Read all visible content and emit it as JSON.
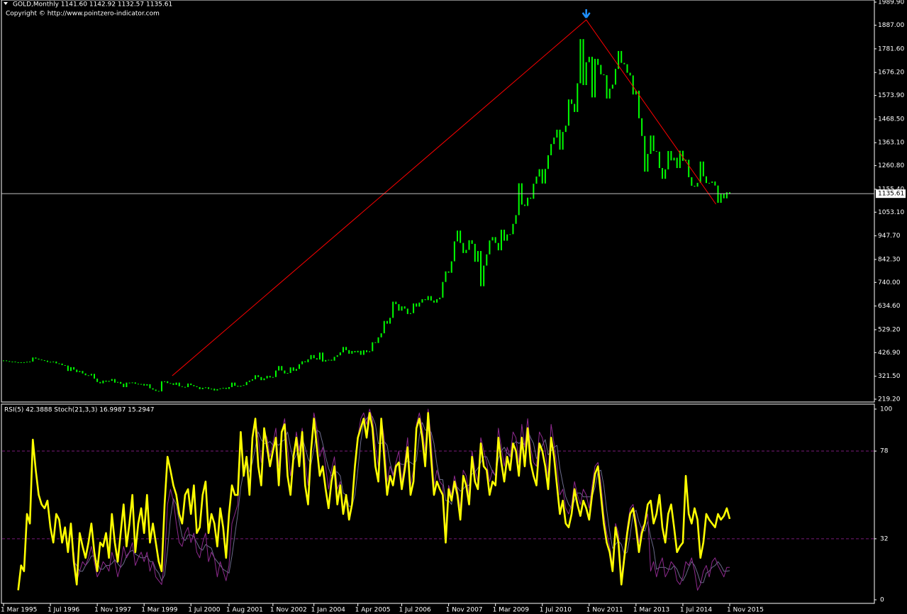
{
  "chart_data": [
    {
      "type": "candlestick",
      "title": "GOLD,Monthly  1141.60 1142.92 1132.57 1135.61",
      "subtitle": "Copyright © http://www.pointzero-indicator.com",
      "color": "#00ff00",
      "values": [
        392,
        389,
        386,
        387,
        384,
        383,
        384,
        383,
        386,
        387,
        405,
        400,
        396,
        393,
        391,
        385,
        386,
        387,
        379,
        378,
        371,
        369,
        345,
        362,
        351,
        340,
        345,
        334,
        326,
        325,
        332,
        311,
        296,
        290,
        302,
        297,
        301,
        309,
        293,
        296,
        288,
        273,
        293,
        292,
        294,
        288,
        287,
        287,
        280,
        286,
        268,
        262,
        256,
        254,
        299,
        299,
        291,
        290,
        283,
        293,
        277,
        274,
        273,
        289,
        282,
        277,
        273,
        264,
        270,
        272,
        265,
        266,
        258,
        264,
        267,
        270,
        265,
        273,
        293,
        279,
        275,
        279,
        282,
        296,
        302,
        308,
        326,
        318,
        304,
        312,
        323,
        316,
        318,
        347,
        367,
        347,
        334,
        336,
        361,
        346,
        354,
        375,
        388,
        384,
        397,
        416,
        402,
        396,
        427,
        387,
        394,
        395,
        391,
        408,
        415,
        428,
        452,
        438,
        422,
        434,
        428,
        435,
        417,
        437,
        429,
        433,
        473,
        470,
        495,
        513,
        568,
        556,
        582,
        654,
        643,
        614,
        633,
        623,
        599,
        603,
        646,
        632,
        650,
        665,
        661,
        679,
        659,
        650,
        665,
        672,
        742,
        789,
        783,
        834,
        923,
        971,
        916,
        871,
        885,
        928,
        912,
        832,
        880,
        723,
        815,
        865,
        927,
        942,
        916,
        883,
        975,
        926,
        954,
        955,
        1001,
        1040,
        1182,
        1087,
        1081,
        1118,
        1113,
        1180,
        1212,
        1245,
        1181,
        1246,
        1307,
        1357,
        1386,
        1421,
        1332,
        1411,
        1439,
        1556,
        1536,
        1500,
        1628,
        1825,
        1620,
        1722,
        1746,
        1565,
        1737,
        1710,
        1668,
        1664,
        1560,
        1604,
        1622,
        1692,
        1772,
        1719,
        1713,
        1675,
        1663,
        1578,
        1595,
        1472,
        1393,
        1234,
        1313,
        1395,
        1326,
        1323,
        1250,
        1202,
        1244,
        1326,
        1284,
        1296,
        1250,
        1327,
        1282,
        1287,
        1209,
        1171,
        1167,
        1184,
        1279,
        1213,
        1183,
        1184,
        1190,
        1172,
        1095,
        1135,
        1115,
        1142,
        1135.61
      ],
      "current_price": {
        "value": 1135.61,
        "label": "1135.61"
      },
      "zigzag": {
        "color": "#ff0000",
        "x": [
          57.6,
          199,
          243.3
        ],
        "values": [
          323.5,
          1910.9,
          1088.7
        ]
      },
      "xlim": [
        0,
        248
      ],
      "xticks": [
        {
          "value": 0,
          "label": "1 Mar 1995"
        },
        {
          "value": 16,
          "label": "1 Jul 1996"
        },
        {
          "value": 32,
          "label": "1 Nov 1997"
        },
        {
          "value": 48,
          "label": "1 Mar 1999"
        },
        {
          "value": 64,
          "label": "1 Jul 2000"
        },
        {
          "value": 77,
          "label": "1 Aug 2001"
        },
        {
          "value": 92,
          "label": "1 Nov 2002"
        },
        {
          "value": 106,
          "label": "1 Jan 2004"
        },
        {
          "value": 121,
          "label": "1 Apr 2005"
        },
        {
          "value": 136,
          "label": "1 Jul 2006"
        },
        {
          "value": 152,
          "label": "1 Nov 2007"
        },
        {
          "value": 168,
          "label": "1 Mar 2009"
        },
        {
          "value": 184,
          "label": "1 Jul 2010"
        },
        {
          "value": 200,
          "label": "1 Nov 2011"
        },
        {
          "value": 216,
          "label": "1 Mar 2013"
        },
        {
          "value": 232,
          "label": "1 Jul 2014"
        },
        {
          "value": 248,
          "label": "1 Nov 2015"
        }
      ],
      "ylim": [
        206.6,
        1999.4
      ],
      "yticks": [
        {
          "value": 1989.9,
          "label": "1989.90"
        },
        {
          "value": 1887,
          "label": "1887.00"
        },
        {
          "value": 1781.6,
          "label": "1781.60"
        },
        {
          "value": 1676.2,
          "label": "1676.20"
        },
        {
          "value": 1573.9,
          "label": "1573.90"
        },
        {
          "value": 1468.5,
          "label": "1468.50"
        },
        {
          "value": 1363.1,
          "label": "1363.10"
        },
        {
          "value": 1260.8,
          "label": "1260.80"
        },
        {
          "value": 1155.4,
          "label": "1155.40"
        },
        {
          "value": 1053.1,
          "label": "1053.10"
        },
        {
          "value": 947.7,
          "label": "947.70"
        },
        {
          "value": 842.3,
          "label": "842.30"
        },
        {
          "value": 740,
          "label": "740.00"
        },
        {
          "value": 634.6,
          "label": "634.60"
        },
        {
          "value": 529.2,
          "label": "529.20"
        },
        {
          "value": 426.9,
          "label": "426.90"
        },
        {
          "value": 321.5,
          "label": "321.50"
        },
        {
          "value": 219.2,
          "label": "219.20"
        }
      ]
    },
    {
      "type": "line",
      "title": "RSI(5) 42.3888 Stoch(21,3,3) 16.9987 15.2947",
      "ylim": [
        -1.5,
        102.6
      ],
      "yticks": [
        100,
        78,
        32,
        0
      ],
      "levels": [
        78,
        32
      ],
      "level_color": "#7a1a7a",
      "series": [
        {
          "color": "#ffff00",
          "width": 2.6,
          "values": [
            null,
            null,
            null,
            null,
            null,
            5,
            18,
            15,
            45,
            40,
            84,
            68,
            55,
            50,
            48,
            52,
            38,
            30,
            45,
            42,
            30,
            38,
            25,
            40,
            20,
            8,
            35,
            28,
            22,
            30,
            40,
            25,
            15,
            30,
            28,
            35,
            22,
            45,
            30,
            20,
            35,
            50,
            28,
            40,
            55,
            25,
            40,
            48,
            35,
            55,
            30,
            40,
            30,
            20,
            15,
            50,
            75,
            68,
            60,
            55,
            45,
            40,
            55,
            58,
            45,
            60,
            35,
            38,
            55,
            62,
            35,
            45,
            40,
            28,
            48,
            38,
            22,
            45,
            60,
            55,
            55,
            88,
            65,
            75,
            55,
            85,
            95,
            70,
            60,
            90,
            80,
            70,
            78,
            85,
            60,
            88,
            92,
            65,
            55,
            75,
            85,
            70,
            88,
            60,
            50,
            78,
            95,
            80,
            65,
            70,
            58,
            48,
            62,
            70,
            50,
            60,
            45,
            55,
            42,
            50,
            70,
            85,
            90,
            95,
            85,
            98,
            90,
            70,
            62,
            95,
            75,
            55,
            65,
            60,
            70,
            72,
            58,
            68,
            80,
            55,
            62,
            90,
            95,
            85,
            70,
            98,
            75,
            55,
            62,
            58,
            55,
            30,
            58,
            52,
            62,
            55,
            42,
            65,
            60,
            50,
            75,
            62,
            58,
            82,
            70,
            68,
            55,
            62,
            60,
            85,
            72,
            62,
            75,
            68,
            82,
            78,
            65,
            85,
            70,
            90,
            72,
            65,
            60,
            82,
            78,
            70,
            58,
            85,
            75,
            60,
            45,
            52,
            40,
            38,
            45,
            58,
            50,
            44,
            52,
            48,
            42,
            55,
            66,
            70,
            55,
            40,
            30,
            25,
            15,
            38,
            30,
            8,
            22,
            35,
            45,
            48,
            38,
            25,
            35,
            40,
            50,
            52,
            40,
            45,
            55,
            38,
            30,
            45,
            50,
            38,
            25,
            28,
            30,
            65,
            45,
            40,
            48,
            42,
            22,
            30,
            45,
            42,
            40,
            38,
            45,
            42,
            44,
            48,
            42.3888
          ]
        },
        {
          "color": "#8e2a8e",
          "width": 1,
          "values": [
            null,
            null,
            null,
            null,
            null,
            null,
            null,
            null,
            null,
            null,
            null,
            null,
            null,
            null,
            null,
            null,
            null,
            null,
            null,
            null,
            null,
            null,
            null,
            null,
            25,
            10,
            15,
            20,
            18,
            22,
            28,
            20,
            12,
            15,
            20,
            18,
            15,
            25,
            20,
            12,
            18,
            28,
            22,
            25,
            30,
            18,
            22,
            25,
            20,
            25,
            15,
            20,
            12,
            10,
            8,
            20,
            50,
            58,
            52,
            40,
            30,
            28,
            35,
            38,
            30,
            35,
            25,
            22,
            30,
            35,
            20,
            25,
            22,
            12,
            20,
            15,
            10,
            18,
            40,
            45,
            50,
            82,
            70,
            72,
            60,
            85,
            95,
            85,
            72,
            88,
            85,
            75,
            82,
            90,
            70,
            88,
            95,
            80,
            65,
            75,
            88,
            78,
            90,
            72,
            60,
            80,
            98,
            90,
            75,
            80,
            70,
            58,
            68,
            75,
            58,
            62,
            48,
            55,
            45,
            50,
            70,
            85,
            95,
            98,
            92,
            100,
            95,
            80,
            70,
            95,
            85,
            62,
            70,
            65,
            72,
            78,
            62,
            72,
            85,
            60,
            68,
            92,
            98,
            90,
            78,
            100,
            85,
            60,
            68,
            62,
            60,
            35,
            60,
            55,
            65,
            58,
            48,
            68,
            65,
            55,
            78,
            68,
            62,
            85,
            78,
            72,
            62,
            68,
            65,
            90,
            80,
            70,
            80,
            75,
            88,
            85,
            72,
            92,
            80,
            95,
            80,
            72,
            70,
            88,
            85,
            78,
            65,
            92,
            82,
            70,
            55,
            58,
            48,
            45,
            50,
            62,
            55,
            50,
            58,
            55,
            48,
            60,
            70,
            72,
            62,
            45,
            35,
            28,
            18,
            40,
            35,
            12,
            25,
            38,
            48,
            50,
            42,
            30,
            38,
            40,
            45,
            15,
            20,
            12,
            18,
            22,
            12,
            15,
            20,
            18,
            10,
            8,
            12,
            20,
            18,
            22,
            15,
            5,
            8,
            15,
            18,
            12,
            20,
            22,
            18,
            15,
            12,
            17,
            16.9987
          ]
        },
        {
          "color": "#6a6a8a",
          "width": 1,
          "values": [
            null,
            null,
            null,
            null,
            null,
            null,
            null,
            null,
            null,
            null,
            null,
            null,
            null,
            null,
            null,
            null,
            null,
            null,
            null,
            null,
            null,
            null,
            null,
            null,
            20,
            18,
            15,
            15,
            18,
            20,
            23,
            23,
            20,
            16,
            16,
            18,
            18,
            19,
            21,
            19,
            17,
            19,
            23,
            25,
            26,
            24,
            23,
            22,
            22,
            23,
            20,
            20,
            16,
            14,
            10,
            13,
            26,
            43,
            53,
            50,
            41,
            33,
            31,
            34,
            34,
            33,
            30,
            27,
            26,
            29,
            28,
            27,
            22,
            20,
            18,
            16,
            15,
            14,
            23,
            34,
            45,
            59,
            67,
            75,
            67,
            72,
            80,
            88,
            84,
            82,
            82,
            83,
            81,
            82,
            81,
            83,
            84,
            88,
            80,
            73,
            76,
            80,
            85,
            80,
            74,
            71,
            79,
            89,
            88,
            82,
            75,
            69,
            65,
            67,
            67,
            65,
            56,
            55,
            49,
            49,
            55,
            68,
            83,
            93,
            95,
            97,
            96,
            92,
            82,
            82,
            83,
            81,
            72,
            66,
            69,
            72,
            71,
            71,
            73,
            72,
            71,
            73,
            86,
            93,
            89,
            89,
            88,
            82,
            71,
            63,
            63,
            52,
            52,
            50,
            60,
            59,
            57,
            58,
            60,
            60,
            66,
            67,
            69,
            72,
            75,
            75,
            71,
            67,
            65,
            74,
            78,
            80,
            77,
            75,
            81,
            83,
            82,
            83,
            81,
            89,
            85,
            82,
            74,
            77,
            81,
            84,
            76,
            78,
            80,
            81,
            69,
            61,
            54,
            50,
            48,
            52,
            56,
            56,
            54,
            54,
            54,
            54,
            59,
            67,
            68,
            60,
            47,
            36,
            27,
            29,
            31,
            29,
            24,
            25,
            34,
            45,
            47,
            41,
            37,
            36,
            41,
            33,
            27,
            16,
            17,
            17,
            17,
            16,
            16,
            18,
            16,
            12,
            10,
            13,
            17,
            20,
            18,
            14,
            9,
            9,
            14,
            15,
            17,
            18,
            20,
            18,
            15,
            15,
            15.2947
          ]
        }
      ]
    }
  ]
}
